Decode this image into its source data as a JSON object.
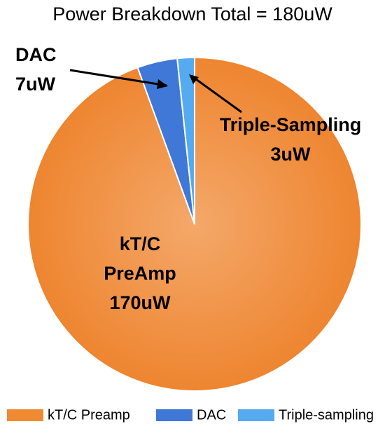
{
  "chart_data": {
    "type": "pie",
    "title": "Power Breakdown Total = 180uW",
    "categories": [
      "kT/C Preamp",
      "DAC",
      "Triple-sampling"
    ],
    "values": [
      170,
      7,
      3
    ],
    "value_labels": [
      "170uW",
      "7uW",
      "3uW"
    ],
    "slice_labels": [
      [
        "kT/C",
        "PreAmp"
      ],
      [
        "DAC"
      ],
      [
        "Triple-Sampling"
      ]
    ],
    "colors": [
      "#ef8a32",
      "#3f78d6",
      "#56aaf0"
    ],
    "legend": "bottom"
  }
}
